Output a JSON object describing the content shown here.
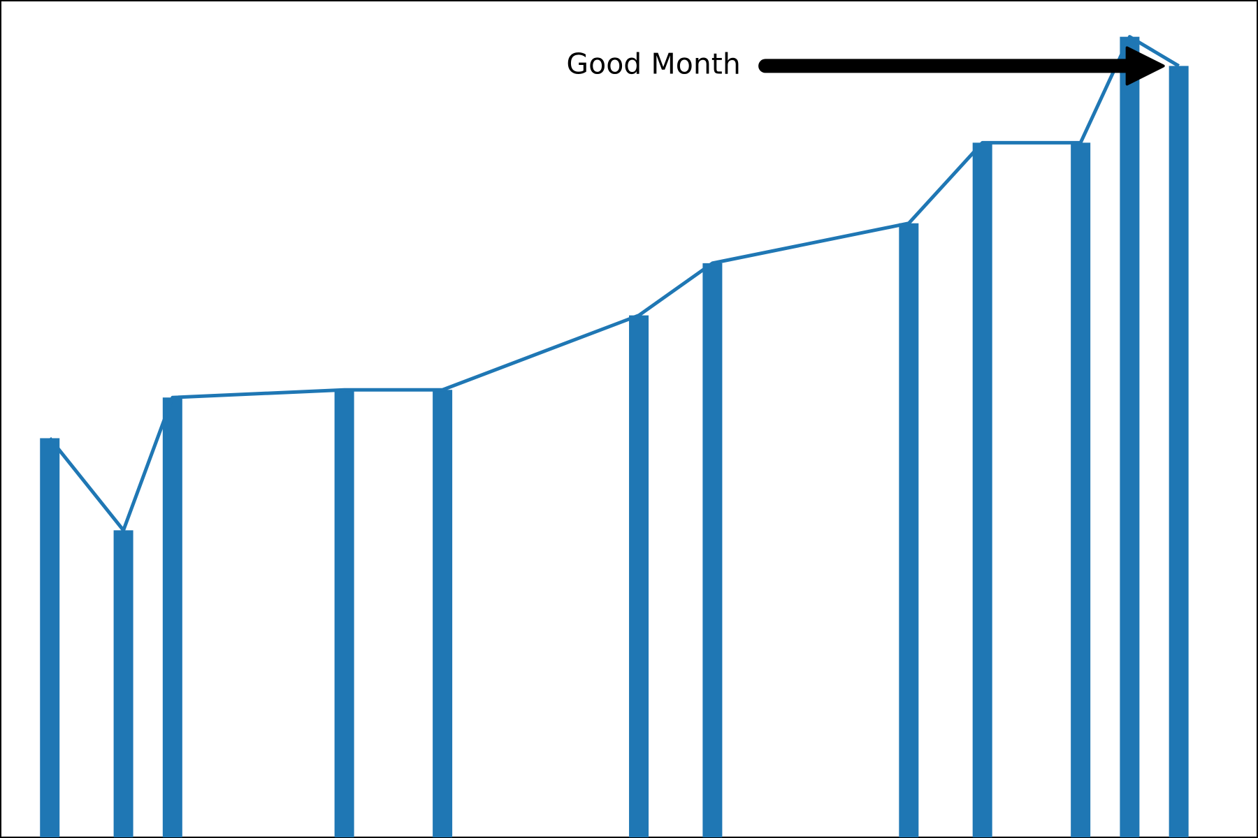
{
  "colors": {
    "series": "#1f77b4",
    "annotation": "#000000",
    "frame": "#000000",
    "background": "#ffffff"
  },
  "chart_data": {
    "type": "bar",
    "title": "",
    "xlabel": "",
    "ylabel": "",
    "axes_visible": false,
    "grid": false,
    "legend": "none",
    "x": [
      1,
      2.5,
      3.5,
      7,
      9,
      13,
      14.5,
      18.5,
      20,
      22,
      23,
      24
    ],
    "values": [
      52,
      40,
      57.3,
      58.3,
      58.3,
      68,
      74.8,
      80,
      90.5,
      90.5,
      104.3,
      100.5
    ],
    "xlim": [
      0,
      25.6
    ],
    "ylim": [
      0,
      109
    ],
    "overlay_line": {
      "type": "line",
      "same_values": true
    },
    "annotations": [
      {
        "text": "Good Month",
        "points_to_x": 24,
        "points_to_y": 100.5,
        "text_x": 13.3,
        "text_y": 100.5
      }
    ]
  }
}
